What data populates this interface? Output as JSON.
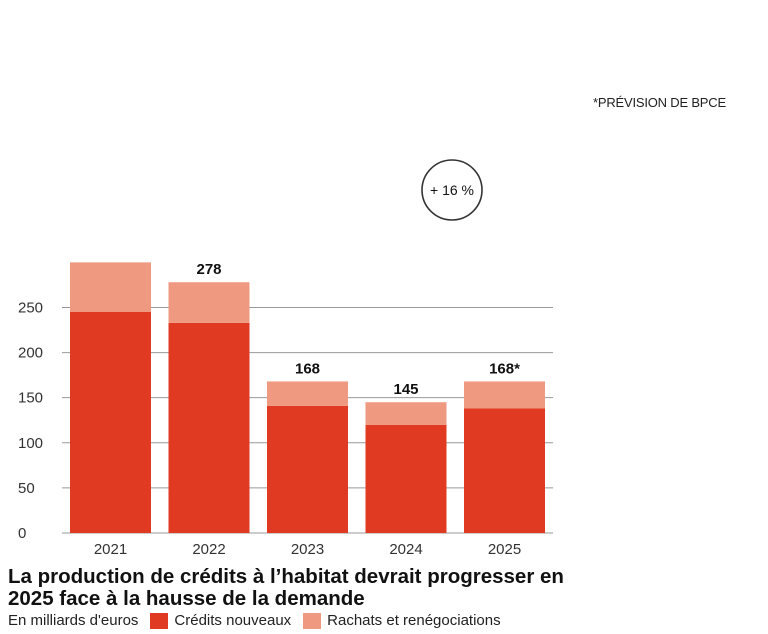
{
  "chart_data": {
    "type": "bar",
    "stacked": true,
    "categories": [
      "2021",
      "2022",
      "2023",
      "2024",
      "2025"
    ],
    "series": [
      {
        "name": "Crédits nouveaux",
        "color": "#e03a23",
        "values": [
          245,
          233,
          141,
          120,
          138
        ]
      },
      {
        "name": "Rachats et renégociations",
        "color": "#ef9a80",
        "values": [
          55,
          45,
          27,
          25,
          30
        ]
      }
    ],
    "totals": [
      "",
      "278",
      "168",
      "145",
      "168*"
    ],
    "yticks": [
      "0",
      "50",
      "100",
      "150",
      "200",
      "250"
    ],
    "ylim": [
      0,
      300
    ],
    "grid": true,
    "annotation": "+ 16 %",
    "note": "*PRÉVISION DE BPCE",
    "title": "La production de crédits à l’habitat devrait progresser en 2025 face à la hausse de la demande",
    "unit": "En milliards d'euros"
  }
}
